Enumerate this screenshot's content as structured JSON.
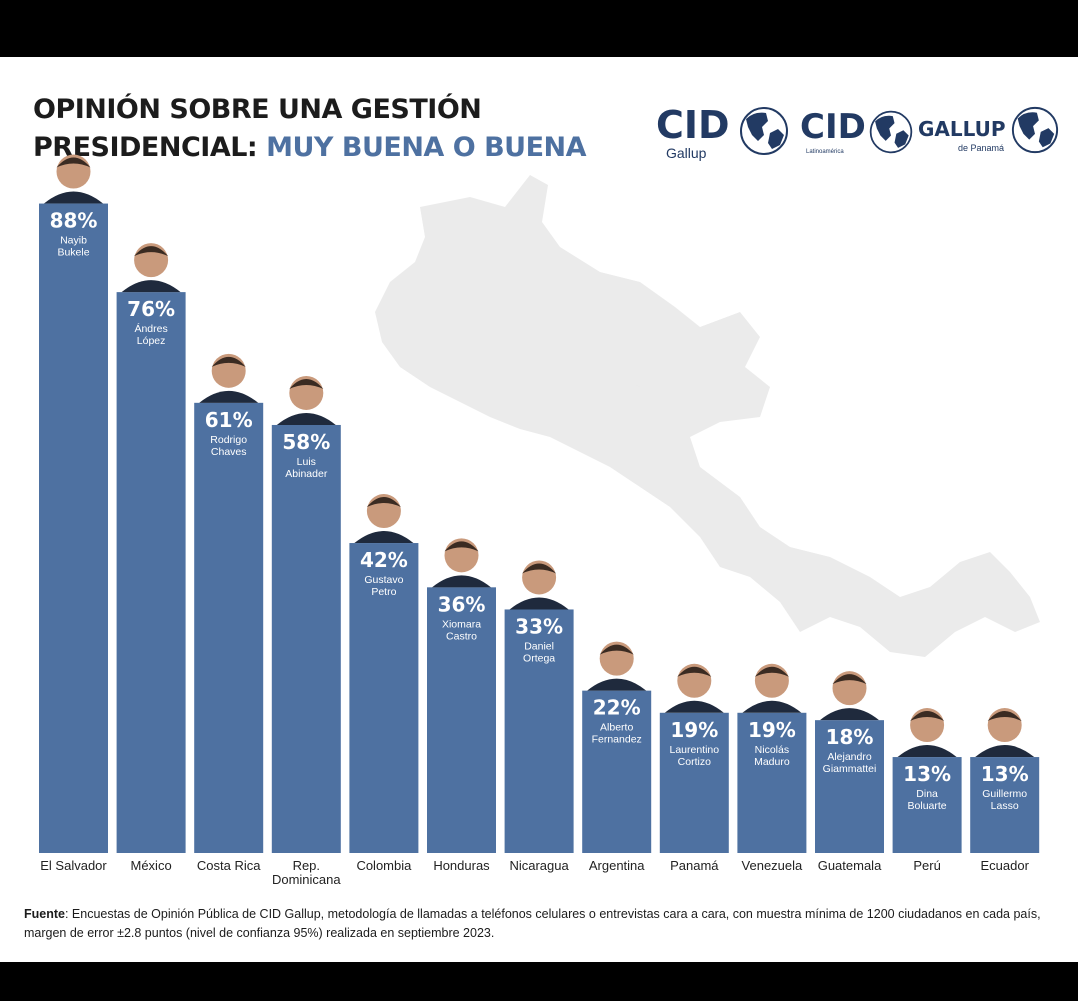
{
  "title": {
    "line1": "OPINIÓN SOBRE UNA GESTIÓN",
    "line2_dark": "PRESIDENCIAL:",
    "line2_accent": "MUY BUENA O BUENA"
  },
  "logos": [
    {
      "word": "CID",
      "sub": "Gallup"
    },
    {
      "word": "CID",
      "sub": "Latinoamérica"
    },
    {
      "word": "GALLUP",
      "sub": "de Panamá"
    }
  ],
  "colors": {
    "bar": "#4e71a1",
    "title_accent": "#4e71a1",
    "logo": "#223a63",
    "map": "#ebebeb"
  },
  "chart_data": {
    "type": "bar",
    "categories": [
      "El Salvador",
      "México",
      "Costa Rica",
      "Rep. Dominicana",
      "Colombia",
      "Honduras",
      "Nicaragua",
      "Argentina",
      "Panamá",
      "Venezuela",
      "Guatemala",
      "Perú",
      "Ecuador"
    ],
    "values": [
      88,
      76,
      61,
      58,
      42,
      36,
      33,
      22,
      19,
      19,
      18,
      13,
      13
    ],
    "value_labels": [
      "88%",
      "76%",
      "61%",
      "58%",
      "42%",
      "36%",
      "33%",
      "22%",
      "19%",
      "19%",
      "18%",
      "13%",
      "13%"
    ],
    "presidents": [
      [
        "Nayib",
        "Bukele"
      ],
      [
        "Ándres",
        "López"
      ],
      [
        "Rodrigo",
        "Chaves"
      ],
      [
        "Luis",
        "Abinader"
      ],
      [
        "Gustavo",
        "Petro"
      ],
      [
        "Xiomara",
        "Castro"
      ],
      [
        "Daniel",
        "Ortega"
      ],
      [
        "Alberto",
        "Fernandez"
      ],
      [
        "Laurentino",
        "Cortizo"
      ],
      [
        "Nicolás",
        "Maduro"
      ],
      [
        "Alejandro",
        "Giammattei"
      ],
      [
        "Dina",
        "Boluarte"
      ],
      [
        "Guillermo",
        "Lasso"
      ]
    ],
    "ylim": [
      0,
      100
    ],
    "grid": false,
    "legend": "none"
  },
  "footnote": {
    "label": "Fuente",
    "text": ": Encuestas de Opinión Pública de CID Gallup, metodología de llamadas a teléfonos celulares o entrevistas cara a cara, con muestra mínima de 1200 ciudadanos en cada país, margen de error ±2.8 puntos (nivel de confianza 95%) realizada en septiembre 2023."
  }
}
